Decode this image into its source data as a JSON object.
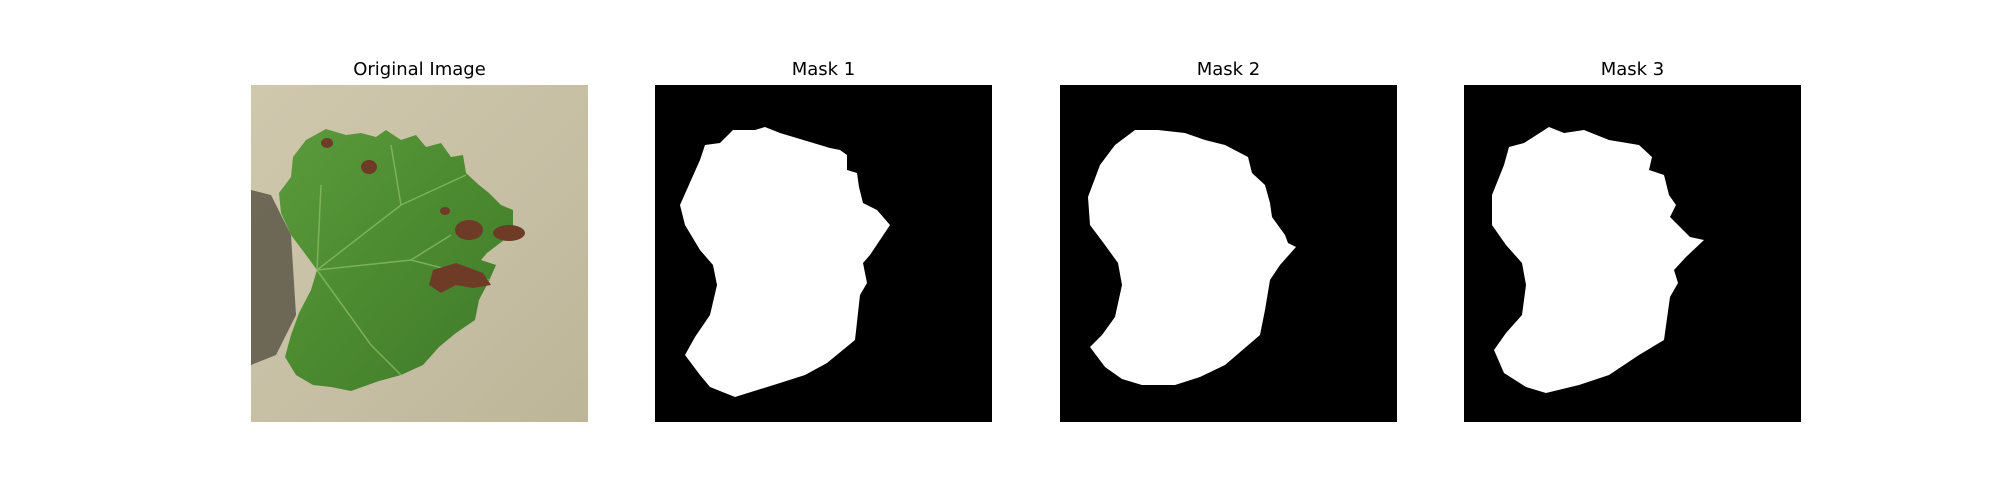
{
  "panels": [
    {
      "title": "Original Image"
    },
    {
      "title": "Mask 1"
    },
    {
      "title": "Mask 2"
    },
    {
      "title": "Mask 3"
    }
  ],
  "colors": {
    "background": "#ffffff",
    "mask_background": "#000000",
    "mask_foreground": "#ffffff",
    "leaf_green": "#4f8f34",
    "lesion_brown": "#6e3b26",
    "ground_beige": "#c7c0a5"
  }
}
